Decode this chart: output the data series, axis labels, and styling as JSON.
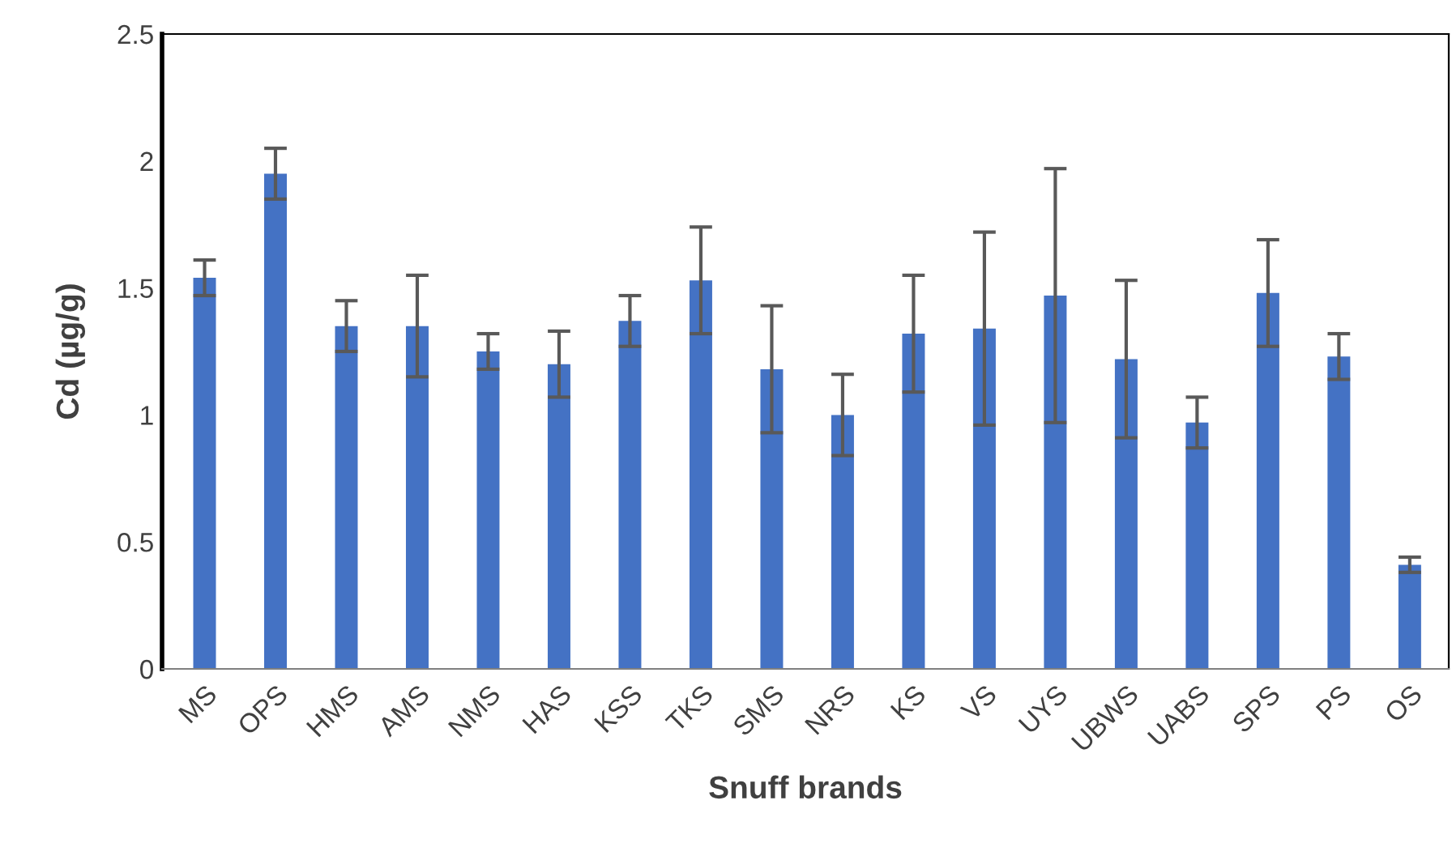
{
  "chart_data": {
    "type": "bar",
    "xlabel": "Snuff brands",
    "ylabel": "Cd (µg/g)",
    "categories": [
      "MS",
      "OPS",
      "HMS",
      "AMS",
      "NMS",
      "HAS",
      "KSS",
      "TKS",
      "SMS",
      "NRS",
      "KS",
      "VS",
      "UYS",
      "UBWS",
      "UABS",
      "SPS",
      "PS",
      "OS"
    ],
    "values": [
      1.54,
      1.95,
      1.35,
      1.35,
      1.25,
      1.2,
      1.37,
      1.53,
      1.18,
      1.0,
      1.32,
      1.34,
      1.47,
      1.22,
      0.97,
      1.48,
      1.23,
      0.41
    ],
    "errors": [
      0.07,
      0.1,
      0.1,
      0.2,
      0.07,
      0.13,
      0.1,
      0.21,
      0.25,
      0.16,
      0.23,
      0.38,
      0.5,
      0.31,
      0.1,
      0.21,
      0.09,
      0.03
    ],
    "color": "#4472c4",
    "ylim": [
      0,
      2.5
    ],
    "yticks": [
      {
        "value": 0,
        "label": "0"
      },
      {
        "value": 0.5,
        "label": "0.5"
      },
      {
        "value": 1,
        "label": "1"
      },
      {
        "value": 1.5,
        "label": "1.5"
      },
      {
        "value": 2,
        "label": "2"
      },
      {
        "value": 2.5,
        "label": "2.5"
      }
    ],
    "grid": false,
    "legend": false
  }
}
